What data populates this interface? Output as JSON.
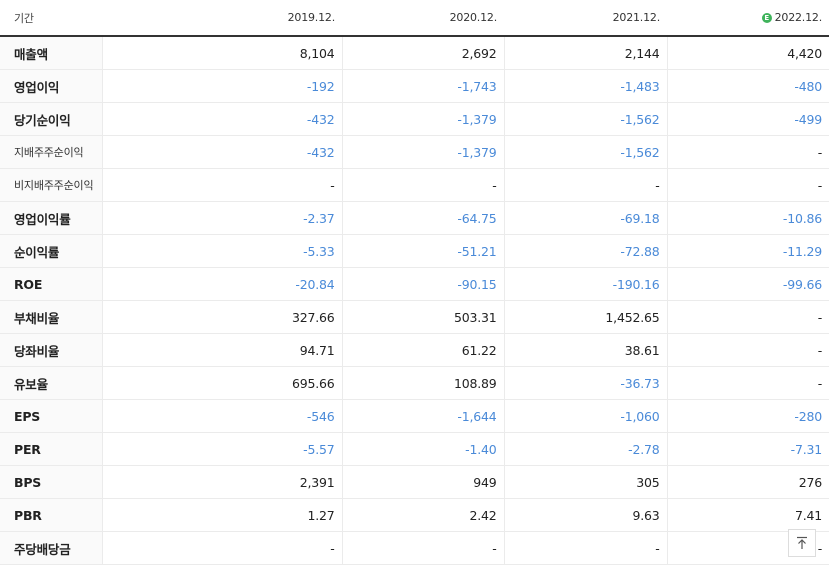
{
  "header": {
    "label": "기간",
    "columns": [
      "2019.12.",
      "2020.12.",
      "2021.12.",
      "2022.12."
    ],
    "estimate_badge": "E",
    "estimate_column_index": 3
  },
  "rows": [
    {
      "label": "매출액",
      "values": [
        "8,104",
        "2,692",
        "2,144",
        "4,420"
      ]
    },
    {
      "label": "영업이익",
      "values": [
        "-192",
        "-1,743",
        "-1,483",
        "-480"
      ]
    },
    {
      "label": "당기순이익",
      "values": [
        "-432",
        "-1,379",
        "-1,562",
        "-499"
      ]
    },
    {
      "label": "지배주주순이익",
      "values": [
        "-432",
        "-1,379",
        "-1,562",
        "-"
      ]
    },
    {
      "label": "비지배주주순이익",
      "values": [
        "-",
        "-",
        "-",
        "-"
      ]
    },
    {
      "label": "영업이익률",
      "values": [
        "-2.37",
        "-64.75",
        "-69.18",
        "-10.86"
      ]
    },
    {
      "label": "순이익률",
      "values": [
        "-5.33",
        "-51.21",
        "-72.88",
        "-11.29"
      ]
    },
    {
      "label": "ROE",
      "values": [
        "-20.84",
        "-90.15",
        "-190.16",
        "-99.66"
      ]
    },
    {
      "label": "부채비율",
      "values": [
        "327.66",
        "503.31",
        "1,452.65",
        "-"
      ]
    },
    {
      "label": "당좌비율",
      "values": [
        "94.71",
        "61.22",
        "38.61",
        "-"
      ]
    },
    {
      "label": "유보율",
      "values": [
        "695.66",
        "108.89",
        "-36.73",
        "-"
      ]
    },
    {
      "label": "EPS",
      "values": [
        "-546",
        "-1,644",
        "-1,060",
        "-280"
      ]
    },
    {
      "label": "PER",
      "values": [
        "-5.57",
        "-1.40",
        "-2.78",
        "-7.31"
      ]
    },
    {
      "label": "BPS",
      "values": [
        "2,391",
        "949",
        "305",
        "276"
      ]
    },
    {
      "label": "PBR",
      "values": [
        "1.27",
        "2.42",
        "9.63",
        "7.41"
      ]
    },
    {
      "label": "주당배당금",
      "values": [
        "-",
        "-",
        "-",
        "-"
      ]
    }
  ],
  "colors": {
    "negative": "#4a8ad8",
    "positive": "#222222",
    "estimate_badge": "#3fb35b"
  },
  "scroll_top_icon": "arrow-up-to-line-icon"
}
